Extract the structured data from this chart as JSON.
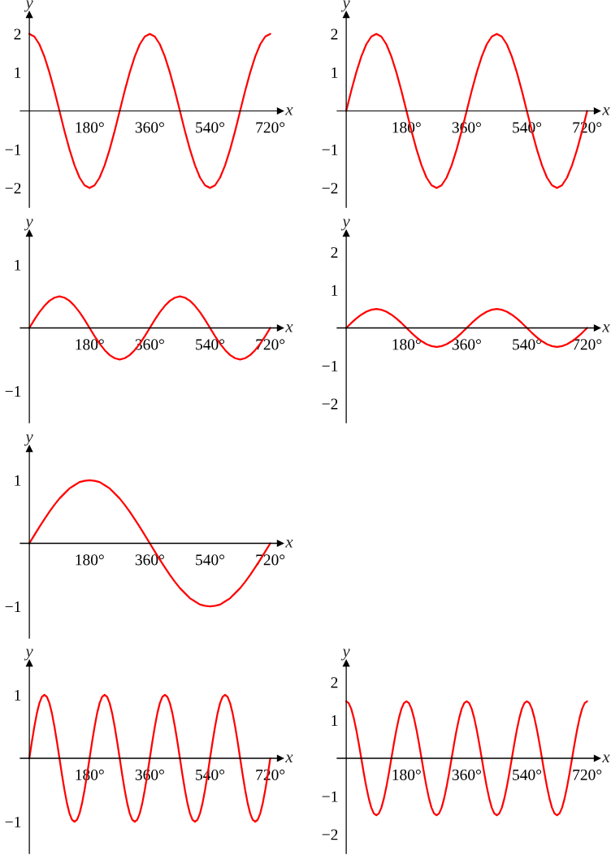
{
  "chart_data": [
    {
      "type": "line",
      "xlabel": "x",
      "ylabel": "y",
      "xlim": [
        -27,
        750
      ],
      "ylim": [
        -2.5,
        2.5
      ],
      "xticks": [
        {
          "value": 180,
          "label": "180°"
        },
        {
          "value": 360,
          "label": "360°"
        },
        {
          "value": 540,
          "label": "540°"
        },
        {
          "value": 720,
          "label": "720°"
        }
      ],
      "yticks": [
        -2,
        -1,
        1,
        2
      ],
      "x": [
        0,
        15,
        30,
        45,
        60,
        75,
        90,
        105,
        120,
        135,
        150,
        165,
        180,
        195,
        210,
        225,
        240,
        255,
        270,
        285,
        300,
        315,
        330,
        345,
        360,
        375,
        390,
        405,
        420,
        435,
        450,
        465,
        480,
        495,
        510,
        525,
        540,
        555,
        570,
        585,
        600,
        615,
        630,
        645,
        660,
        675,
        690,
        705,
        720
      ],
      "series": [
        {
          "color": "#ff0000",
          "values": [
            2,
            1.93,
            1.73,
            1.41,
            1,
            0.52,
            0,
            -0.52,
            -1,
            -1.41,
            -1.73,
            -1.93,
            -2,
            -1.93,
            -1.73,
            -1.41,
            -1,
            -0.52,
            0,
            0.52,
            1,
            1.41,
            1.73,
            1.93,
            2,
            1.93,
            1.73,
            1.41,
            1,
            0.52,
            0,
            -0.52,
            -1,
            -1.41,
            -1.73,
            -1.93,
            -2,
            -1.93,
            -1.73,
            -1.41,
            -1,
            -0.52,
            0,
            0.52,
            1,
            1.41,
            1.73,
            1.93,
            2
          ]
        }
      ]
    },
    {
      "type": "line",
      "xlabel": "x",
      "ylabel": "y",
      "xlim": [
        -27,
        750
      ],
      "ylim": [
        -2.5,
        2.5
      ],
      "xticks": [
        {
          "value": 180,
          "label": "180°"
        },
        {
          "value": 360,
          "label": "360°"
        },
        {
          "value": 540,
          "label": "540°"
        },
        {
          "value": 720,
          "label": "720°"
        }
      ],
      "yticks": [
        -2,
        -1,
        1,
        2
      ],
      "x": [
        0,
        15,
        30,
        45,
        60,
        75,
        90,
        105,
        120,
        135,
        150,
        165,
        180,
        195,
        210,
        225,
        240,
        255,
        270,
        285,
        300,
        315,
        330,
        345,
        360,
        375,
        390,
        405,
        420,
        435,
        450,
        465,
        480,
        495,
        510,
        525,
        540,
        555,
        570,
        585,
        600,
        615,
        630,
        645,
        660,
        675,
        690,
        705,
        720
      ],
      "series": [
        {
          "color": "#ff0000",
          "values": [
            0,
            0.52,
            1,
            1.41,
            1.73,
            1.93,
            2,
            1.93,
            1.73,
            1.41,
            1,
            0.52,
            0,
            -0.52,
            -1,
            -1.41,
            -1.73,
            -1.93,
            -2,
            -1.93,
            -1.73,
            -1.41,
            -1,
            -0.52,
            0,
            0.52,
            1,
            1.41,
            1.73,
            1.93,
            2,
            1.93,
            1.73,
            1.41,
            1,
            0.52,
            0,
            -0.52,
            -1,
            -1.41,
            -1.73,
            -1.93,
            -2,
            -1.93,
            -1.73,
            -1.41,
            -1,
            -0.52,
            0
          ]
        }
      ]
    },
    {
      "type": "line",
      "xlabel": "x",
      "ylabel": "y",
      "xlim": [
        -27,
        750
      ],
      "ylim": [
        -1.5,
        1.5
      ],
      "xticks": [
        {
          "value": 180,
          "label": "180°"
        },
        {
          "value": 360,
          "label": "360°"
        },
        {
          "value": 540,
          "label": "540°"
        },
        {
          "value": 720,
          "label": "720°"
        }
      ],
      "yticks": [
        -1,
        1
      ],
      "x": [
        0,
        15,
        30,
        45,
        60,
        75,
        90,
        105,
        120,
        135,
        150,
        165,
        180,
        195,
        210,
        225,
        240,
        255,
        270,
        285,
        300,
        315,
        330,
        345,
        360,
        375,
        390,
        405,
        420,
        435,
        450,
        465,
        480,
        495,
        510,
        525,
        540,
        555,
        570,
        585,
        600,
        615,
        630,
        645,
        660,
        675,
        690,
        705,
        720
      ],
      "series": [
        {
          "color": "#ff0000",
          "values": [
            0,
            0.13,
            0.25,
            0.35,
            0.43,
            0.48,
            0.5,
            0.48,
            0.43,
            0.35,
            0.25,
            0.13,
            0,
            -0.13,
            -0.25,
            -0.35,
            -0.43,
            -0.48,
            -0.5,
            -0.48,
            -0.43,
            -0.35,
            -0.25,
            -0.13,
            0,
            0.13,
            0.25,
            0.35,
            0.43,
            0.48,
            0.5,
            0.48,
            0.43,
            0.35,
            0.25,
            0.13,
            0,
            -0.13,
            -0.25,
            -0.35,
            -0.43,
            -0.48,
            -0.5,
            -0.48,
            -0.43,
            -0.35,
            -0.25,
            -0.13,
            0
          ]
        }
      ]
    },
    {
      "type": "line",
      "xlabel": "x",
      "ylabel": "y",
      "xlim": [
        -27,
        750
      ],
      "ylim": [
        -2.5,
        2.5
      ],
      "xticks": [
        {
          "value": 180,
          "label": "180°"
        },
        {
          "value": 360,
          "label": "360°"
        },
        {
          "value": 540,
          "label": "540°"
        },
        {
          "value": 720,
          "label": "720°"
        }
      ],
      "yticks": [
        -2,
        -1,
        1,
        2
      ],
      "x": [
        0,
        15,
        30,
        45,
        60,
        75,
        90,
        105,
        120,
        135,
        150,
        165,
        180,
        195,
        210,
        225,
        240,
        255,
        270,
        285,
        300,
        315,
        330,
        345,
        360,
        375,
        390,
        405,
        420,
        435,
        450,
        465,
        480,
        495,
        510,
        525,
        540,
        555,
        570,
        585,
        600,
        615,
        630,
        645,
        660,
        675,
        690,
        705,
        720
      ],
      "series": [
        {
          "color": "#ff0000",
          "values": [
            0,
            0.13,
            0.25,
            0.35,
            0.43,
            0.48,
            0.5,
            0.48,
            0.43,
            0.35,
            0.25,
            0.13,
            0,
            -0.13,
            -0.25,
            -0.35,
            -0.43,
            -0.48,
            -0.5,
            -0.48,
            -0.43,
            -0.35,
            -0.25,
            -0.13,
            0,
            0.13,
            0.25,
            0.35,
            0.43,
            0.48,
            0.5,
            0.48,
            0.43,
            0.35,
            0.25,
            0.13,
            0,
            -0.13,
            -0.25,
            -0.35,
            -0.43,
            -0.48,
            -0.5,
            -0.48,
            -0.43,
            -0.35,
            -0.25,
            -0.13,
            0
          ]
        }
      ]
    },
    {
      "type": "line",
      "xlabel": "x",
      "ylabel": "y",
      "xlim": [
        -27,
        750
      ],
      "ylim": [
        -1.5,
        1.5
      ],
      "xticks": [
        {
          "value": 180,
          "label": "180°"
        },
        {
          "value": 360,
          "label": "360°"
        },
        {
          "value": 540,
          "label": "540°"
        },
        {
          "value": 720,
          "label": "720°"
        }
      ],
      "yticks": [
        -1,
        1
      ],
      "x": [
        0,
        15,
        30,
        45,
        60,
        75,
        90,
        105,
        120,
        135,
        150,
        165,
        180,
        195,
        210,
        225,
        240,
        255,
        270,
        285,
        300,
        315,
        330,
        345,
        360,
        375,
        390,
        405,
        420,
        435,
        450,
        465,
        480,
        495,
        510,
        525,
        540,
        555,
        570,
        585,
        600,
        615,
        630,
        645,
        660,
        675,
        690,
        705,
        720
      ],
      "series": [
        {
          "color": "#ff0000",
          "values": [
            0,
            0.13,
            0.26,
            0.38,
            0.5,
            0.61,
            0.71,
            0.79,
            0.87,
            0.92,
            0.97,
            0.99,
            1,
            0.99,
            0.97,
            0.92,
            0.87,
            0.79,
            0.71,
            0.61,
            0.5,
            0.38,
            0.26,
            0.13,
            0,
            -0.13,
            -0.26,
            -0.38,
            -0.5,
            -0.61,
            -0.71,
            -0.79,
            -0.87,
            -0.92,
            -0.97,
            -0.99,
            -1,
            -0.99,
            -0.97,
            -0.92,
            -0.87,
            -0.79,
            -0.71,
            -0.61,
            -0.5,
            -0.38,
            -0.26,
            -0.13,
            0
          ]
        }
      ]
    },
    {
      "type": "line",
      "xlabel": "x",
      "ylabel": "y",
      "xlim": [
        -27,
        750
      ],
      "ylim": [
        -1.5,
        1.5
      ],
      "xticks": [
        {
          "value": 180,
          "label": "180°"
        },
        {
          "value": 360,
          "label": "360°"
        },
        {
          "value": 540,
          "label": "540°"
        },
        {
          "value": 720,
          "label": "720°"
        }
      ],
      "yticks": [
        -1,
        1
      ],
      "x": [
        0,
        7.5,
        15,
        22.5,
        30,
        37.5,
        45,
        52.5,
        60,
        67.5,
        75,
        82.5,
        90,
        97.5,
        105,
        112.5,
        120,
        127.5,
        135,
        142.5,
        150,
        157.5,
        165,
        172.5,
        180,
        187.5,
        195,
        202.5,
        210,
        217.5,
        225,
        232.5,
        240,
        247.5,
        255,
        262.5,
        270,
        277.5,
        285,
        292.5,
        300,
        307.5,
        315,
        322.5,
        330,
        337.5,
        345,
        352.5,
        360,
        367.5,
        375,
        382.5,
        390,
        397.5,
        405,
        412.5,
        420,
        427.5,
        435,
        442.5,
        450,
        457.5,
        465,
        472.5,
        480,
        487.5,
        495,
        502.5,
        510,
        517.5,
        525,
        532.5,
        540,
        547.5,
        555,
        562.5,
        570,
        577.5,
        585,
        592.5,
        600,
        607.5,
        615,
        622.5,
        630,
        637.5,
        645,
        652.5,
        660,
        667.5,
        675,
        682.5,
        690,
        697.5,
        705,
        712.5,
        720
      ],
      "series": [
        {
          "color": "#ff0000",
          "values": [
            0,
            0.26,
            0.5,
            0.71,
            0.87,
            0.97,
            1,
            0.97,
            0.87,
            0.71,
            0.5,
            0.26,
            0,
            -0.26,
            -0.5,
            -0.71,
            -0.87,
            -0.97,
            -1,
            -0.97,
            -0.87,
            -0.71,
            -0.5,
            -0.26,
            0,
            0.26,
            0.5,
            0.71,
            0.87,
            0.97,
            1,
            0.97,
            0.87,
            0.71,
            0.5,
            0.26,
            0,
            -0.26,
            -0.5,
            -0.71,
            -0.87,
            -0.97,
            -1,
            -0.97,
            -0.87,
            -0.71,
            -0.5,
            -0.26,
            0,
            0.26,
            0.5,
            0.71,
            0.87,
            0.97,
            1,
            0.97,
            0.87,
            0.71,
            0.5,
            0.26,
            0,
            -0.26,
            -0.5,
            -0.71,
            -0.87,
            -0.97,
            -1,
            -0.97,
            -0.87,
            -0.71,
            -0.5,
            -0.26,
            0,
            0.26,
            0.5,
            0.71,
            0.87,
            0.97,
            1,
            0.97,
            0.87,
            0.71,
            0.5,
            0.26,
            0,
            -0.26,
            -0.5,
            -0.71,
            -0.87,
            -0.97,
            -1,
            -0.97,
            -0.87,
            -0.71,
            -0.5,
            -0.26,
            0
          ]
        }
      ]
    },
    {
      "type": "line",
      "xlabel": "x",
      "ylabel": "y",
      "xlim": [
        -27,
        750
      ],
      "ylim": [
        -2.5,
        2.5
      ],
      "xticks": [
        {
          "value": 180,
          "label": "180°"
        },
        {
          "value": 360,
          "label": "360°"
        },
        {
          "value": 540,
          "label": "540°"
        },
        {
          "value": 720,
          "label": "720°"
        }
      ],
      "yticks": [
        -2,
        -1,
        1,
        2
      ],
      "x": [
        0,
        7.5,
        15,
        22.5,
        30,
        37.5,
        45,
        52.5,
        60,
        67.5,
        75,
        82.5,
        90,
        97.5,
        105,
        112.5,
        120,
        127.5,
        135,
        142.5,
        150,
        157.5,
        165,
        172.5,
        180,
        187.5,
        195,
        202.5,
        210,
        217.5,
        225,
        232.5,
        240,
        247.5,
        255,
        262.5,
        270,
        277.5,
        285,
        292.5,
        300,
        307.5,
        315,
        322.5,
        330,
        337.5,
        345,
        352.5,
        360,
        367.5,
        375,
        382.5,
        390,
        397.5,
        405,
        412.5,
        420,
        427.5,
        435,
        442.5,
        450,
        457.5,
        465,
        472.5,
        480,
        487.5,
        495,
        502.5,
        510,
        517.5,
        525,
        532.5,
        540,
        547.5,
        555,
        562.5,
        570,
        577.5,
        585,
        592.5,
        600,
        607.5,
        615,
        622.5,
        630,
        637.5,
        645,
        652.5,
        660,
        667.5,
        675,
        682.5,
        690,
        697.5,
        705,
        712.5,
        720
      ],
      "series": [
        {
          "color": "#ff0000",
          "values": [
            1.5,
            1.45,
            1.3,
            1.06,
            0.75,
            0.39,
            0,
            -0.39,
            -0.75,
            -1.06,
            -1.3,
            -1.45,
            -1.5,
            -1.45,
            -1.3,
            -1.06,
            -0.75,
            -0.39,
            0,
            0.39,
            0.75,
            1.06,
            1.3,
            1.45,
            1.5,
            1.45,
            1.3,
            1.06,
            0.75,
            0.39,
            0,
            -0.39,
            -0.75,
            -1.06,
            -1.3,
            -1.45,
            -1.5,
            -1.45,
            -1.3,
            -1.06,
            -0.75,
            -0.39,
            0,
            0.39,
            0.75,
            1.06,
            1.3,
            1.45,
            1.5,
            1.45,
            1.3,
            1.06,
            0.75,
            0.39,
            0,
            -0.39,
            -0.75,
            -1.06,
            -1.3,
            -1.45,
            -1.5,
            -1.45,
            -1.3,
            -1.06,
            -0.75,
            -0.39,
            0,
            0.39,
            0.75,
            1.06,
            1.3,
            1.45,
            1.5,
            1.45,
            1.3,
            1.06,
            0.75,
            0.39,
            0,
            -0.39,
            -0.75,
            -1.06,
            -1.3,
            -1.45,
            -1.5,
            -1.45,
            -1.3,
            -1.06,
            -0.75,
            -0.39,
            0,
            0.39,
            0.75,
            1.06,
            1.3,
            1.45,
            1.5
          ]
        }
      ]
    }
  ]
}
